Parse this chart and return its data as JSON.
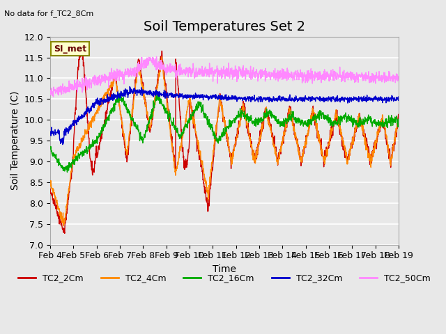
{
  "title": "Soil Temperatures Set 2",
  "ylabel": "Soil Temperature (C)",
  "xlabel": "Time",
  "top_left_note": "No data for f_TC2_8Cm",
  "legend_box_label": "SI_met",
  "ylim": [
    7.0,
    12.0
  ],
  "yticks": [
    7.0,
    7.5,
    8.0,
    8.5,
    9.0,
    9.5,
    10.0,
    10.5,
    11.0,
    11.5,
    12.0
  ],
  "xtick_labels": [
    "Feb 4",
    "Feb 5",
    "Feb 6",
    "Feb 7",
    "Feb 8",
    "Feb 9",
    "Feb 10",
    "Feb 11",
    "Feb 12",
    "Feb 13",
    "Feb 14",
    "Feb 15",
    "Feb 16",
    "Feb 17",
    "Feb 18",
    "Feb 19"
  ],
  "colors": {
    "TC2_2Cm": "#CC0000",
    "TC2_4Cm": "#FF8800",
    "TC2_16Cm": "#00AA00",
    "TC2_32Cm": "#0000CC",
    "TC2_50Cm": "#FF88FF"
  },
  "background_color": "#E8E8E8",
  "plot_bg_color": "#E8E8E8",
  "grid_color": "#FFFFFF",
  "title_fontsize": 14,
  "axis_label_fontsize": 10,
  "tick_fontsize": 9
}
